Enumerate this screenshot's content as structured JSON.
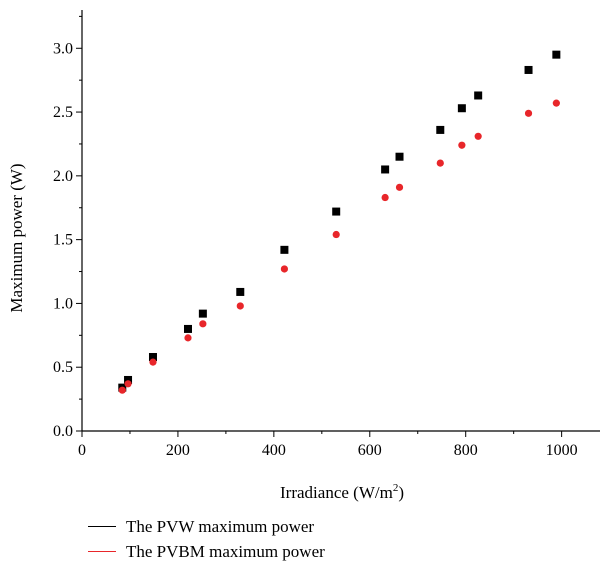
{
  "chart_data": {
    "type": "scatter",
    "title": "",
    "xlabel": "Irradiance (W/m",
    "xlabel_sup": "2",
    "xlabel_close": ")",
    "ylabel": "Maximum power (W)",
    "xlim": [
      0,
      1080
    ],
    "ylim": [
      0,
      3.3
    ],
    "x_ticks": [
      0,
      200,
      400,
      600,
      800,
      1000
    ],
    "x_tick_labels": [
      "0",
      "200",
      "400",
      "600",
      "800",
      "1000"
    ],
    "y_ticks": [
      0.0,
      0.5,
      1.0,
      1.5,
      2.0,
      2.5,
      3.0
    ],
    "y_tick_labels": [
      "0.0",
      "0.5",
      "1.0",
      "1.5",
      "2.0",
      "2.5",
      "3.0"
    ],
    "grid": false,
    "legend_position": "bottom",
    "series": [
      {
        "name": "The PVW maximum power",
        "color": "#000000",
        "marker": "square",
        "points": [
          [
            84,
            0.34
          ],
          [
            96,
            0.4
          ],
          [
            148,
            0.58
          ],
          [
            221,
            0.8
          ],
          [
            252,
            0.92
          ],
          [
            330,
            1.09
          ],
          [
            422,
            1.42
          ],
          [
            530,
            1.72
          ],
          [
            632,
            2.05
          ],
          [
            662,
            2.15
          ],
          [
            747,
            2.36
          ],
          [
            792,
            2.53
          ],
          [
            826,
            2.63
          ],
          [
            931,
            2.83
          ],
          [
            989,
            2.95
          ]
        ]
      },
      {
        "name": "The PVBM maximum power",
        "color": "#e8262a",
        "marker": "circle",
        "points": [
          [
            84,
            0.32
          ],
          [
            96,
            0.37
          ],
          [
            148,
            0.54
          ],
          [
            221,
            0.73
          ],
          [
            252,
            0.84
          ],
          [
            330,
            0.98
          ],
          [
            422,
            1.27
          ],
          [
            530,
            1.54
          ],
          [
            632,
            1.83
          ],
          [
            662,
            1.91
          ],
          [
            747,
            2.1
          ],
          [
            792,
            2.24
          ],
          [
            826,
            2.31
          ],
          [
            931,
            2.49
          ],
          [
            989,
            2.57
          ]
        ]
      }
    ]
  },
  "legend": {
    "items": [
      {
        "label": "The PVW maximum power",
        "color": "#000000"
      },
      {
        "label": "The PVBM maximum power",
        "color": "#e8262a"
      }
    ]
  }
}
